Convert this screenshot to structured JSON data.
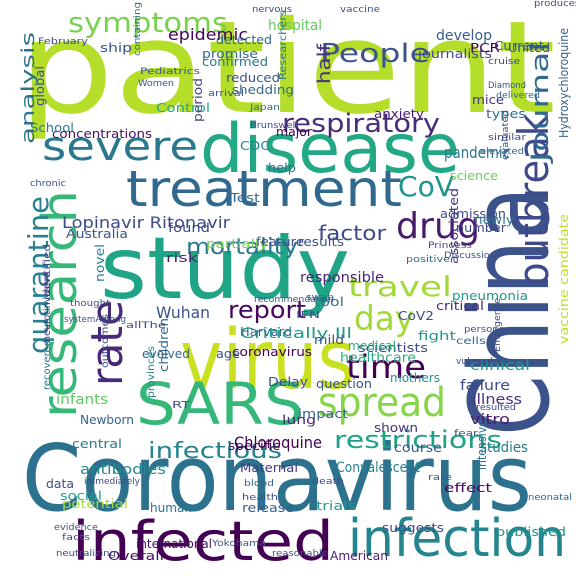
{
  "cloud": {
    "words": [
      {
        "text": "patient",
        "color": "#b5de2b"
      },
      {
        "text": "Coronavirus",
        "color": "#2c728e"
      },
      {
        "text": "disease",
        "color": "#22a884"
      },
      {
        "text": "study",
        "color": "#20a486"
      },
      {
        "text": "China",
        "color": "#3b528b"
      },
      {
        "text": "virus",
        "color": "#c8e020"
      },
      {
        "text": "infected",
        "color": "#440154"
      },
      {
        "text": "infection",
        "color": "#25858e"
      },
      {
        "text": "SARS",
        "color": "#35b779"
      },
      {
        "text": "treatment",
        "color": "#31688e"
      },
      {
        "text": "research",
        "color": "#35b779"
      },
      {
        "text": "outbreak",
        "color": "#3e4a89"
      },
      {
        "text": "severe",
        "color": "#2a788e"
      },
      {
        "text": "spread",
        "color": "#86d549"
      },
      {
        "text": "rate",
        "color": "#482878"
      },
      {
        "text": "symptoms",
        "color": "#7ad151"
      },
      {
        "text": "People",
        "color": "#3b528b"
      },
      {
        "text": "respiratory",
        "color": "#472c7a"
      },
      {
        "text": "Journal",
        "color": "#31688e"
      },
      {
        "text": "quarantine",
        "color": "#27808e"
      },
      {
        "text": "drug",
        "color": "#481a6c"
      },
      {
        "text": "CoV",
        "color": "#1f958b"
      },
      {
        "text": "travel",
        "color": "#a0da39"
      },
      {
        "text": "day",
        "color": "#a0da39"
      },
      {
        "text": "time",
        "color": "#440154"
      },
      {
        "text": "mortality",
        "color": "#2a788e"
      },
      {
        "text": "infectious",
        "color": "#25848e"
      },
      {
        "text": "restrictions",
        "color": "#1fa188"
      },
      {
        "text": "analysis",
        "color": "#2c728e"
      },
      {
        "text": "factor",
        "color": "#3e4a89"
      },
      {
        "text": "half",
        "color": "#46337e"
      },
      {
        "text": "report",
        "color": "#46085c"
      },
      {
        "text": "Wuhan",
        "color": "#3b528b"
      },
      {
        "text": "Lopinavir Ritonavir",
        "color": "#3e4a89"
      },
      {
        "text": "epidemic",
        "color": "#440154"
      },
      {
        "text": "hospital",
        "color": "#65cb5e"
      },
      {
        "text": "develop",
        "color": "#355f8d"
      },
      {
        "text": "pandemic",
        "color": "#2a788e"
      },
      {
        "text": "vaccine candidate",
        "color": "#bddf26"
      },
      {
        "text": "Critically Ill",
        "color": "#1e9c89"
      },
      {
        "text": "Chloroquine",
        "color": "#440154"
      },
      {
        "text": "antibodies",
        "color": "#24878e"
      },
      {
        "text": "Convalescent",
        "color": "#26828e"
      },
      {
        "text": "responsible",
        "color": "#482475"
      },
      {
        "text": "pneumonia",
        "color": "#1f988b"
      },
      {
        "text": "healthcare",
        "color": "#26ad81"
      },
      {
        "text": "scientists",
        "color": "#3f4889"
      },
      {
        "text": "clinical",
        "color": "#1e9b8a"
      },
      {
        "text": "failure",
        "color": "#3e4a89"
      },
      {
        "text": "illness",
        "color": "#46327e"
      },
      {
        "text": "vitro",
        "color": "#481a6c"
      },
      {
        "text": "studies",
        "color": "#297b8e"
      },
      {
        "text": "course",
        "color": "#39568c"
      },
      {
        "text": "intensive",
        "color": "#2a788e"
      },
      {
        "text": "suggests",
        "color": "#3e4a89"
      },
      {
        "text": "published",
        "color": "#1f958b"
      },
      {
        "text": "effect",
        "color": "#46085c"
      },
      {
        "text": "trials",
        "color": "#1f9a8a"
      },
      {
        "text": "release",
        "color": "#355f8d"
      },
      {
        "text": "human",
        "color": "#2c728e"
      },
      {
        "text": "social",
        "color": "#20a386"
      },
      {
        "text": "potential",
        "color": "#a5db36"
      },
      {
        "text": "international",
        "color": "#470d60"
      },
      {
        "text": "American",
        "color": "#481f70"
      },
      {
        "text": "Overall",
        "color": "#46085c"
      },
      {
        "text": "Maternal",
        "color": "#453781"
      },
      {
        "text": "specific",
        "color": "#440154"
      },
      {
        "text": "shown",
        "color": "#46337e"
      },
      {
        "text": "question",
        "color": "#3b528b"
      },
      {
        "text": "lung",
        "color": "#482475"
      },
      {
        "text": "impact",
        "color": "#33638d"
      },
      {
        "text": "Delay",
        "color": "#3e4a89"
      },
      {
        "text": "children",
        "color": "#32648e"
      },
      {
        "text": "evolved",
        "color": "#31688e"
      },
      {
        "text": "coronavirus",
        "color": "#440154"
      },
      {
        "text": "infants",
        "color": "#5ec962"
      },
      {
        "text": "Newborn",
        "color": "#32648e"
      },
      {
        "text": "central",
        "color": "#2a788e"
      },
      {
        "text": "CoV2",
        "color": "#3e4a89"
      },
      {
        "text": "mothers",
        "color": "#21918c"
      },
      {
        "text": "fight",
        "color": "#1f988b"
      },
      {
        "text": "critical",
        "color": "#482878"
      },
      {
        "text": "medical",
        "color": "#25ab82"
      },
      {
        "text": "mild",
        "color": "#3e4a89"
      },
      {
        "text": "tool",
        "color": "#2a788e"
      },
      {
        "text": "Harvard",
        "color": "#31688e"
      },
      {
        "text": "IFN",
        "color": "#3e4a89"
      },
      {
        "text": "results",
        "color": "#3b528b"
      },
      {
        "text": "feature",
        "color": "#3e4a89"
      },
      {
        "text": "partially",
        "color": "#7ad151"
      },
      {
        "text": "risk",
        "color": "#482475"
      },
      {
        "text": "novel",
        "color": "#26828e"
      },
      {
        "text": "associated",
        "color": "#46337e"
      },
      {
        "text": "admission",
        "color": "#3e4a89"
      },
      {
        "text": "newly",
        "color": "#2a788e"
      },
      {
        "text": "science",
        "color": "#6ccd5a"
      },
      {
        "text": "number",
        "color": "#3e4a89"
      },
      {
        "text": "types",
        "color": "#2c728e"
      },
      {
        "text": "mice",
        "color": "#46337e"
      },
      {
        "text": "anxiety",
        "color": "#481a6c"
      },
      {
        "text": "reduced",
        "color": "#3b528b"
      },
      {
        "text": "shedding",
        "color": "#31688e"
      },
      {
        "text": "Control",
        "color": "#22a884"
      },
      {
        "text": "period",
        "color": "#3e4a89"
      },
      {
        "text": "major",
        "color": "#440154"
      },
      {
        "text": "Researchers",
        "color": "#2c728e"
      },
      {
        "text": "CDC",
        "color": "#26828e"
      },
      {
        "text": "Australia",
        "color": "#3b528b"
      },
      {
        "text": "found",
        "color": "#3e4a89"
      },
      {
        "text": "Test",
        "color": "#31688e"
      },
      {
        "text": "concentrations",
        "color": "#470d60"
      },
      {
        "text": "global",
        "color": "#3b528b"
      },
      {
        "text": "School",
        "color": "#2a788e"
      },
      {
        "text": "confirmed",
        "color": "#2a788e"
      },
      {
        "text": "promise",
        "color": "#32648e"
      },
      {
        "text": "detected",
        "color": "#31688e"
      },
      {
        "text": "journalists",
        "color": "#3e4a89"
      },
      {
        "text": "Current",
        "color": "#31688e"
      },
      {
        "text": "PCR",
        "color": "#440154"
      },
      {
        "text": "United",
        "color": "#3e4a89"
      },
      {
        "text": "ship",
        "color": "#3b528b"
      },
      {
        "text": "Hydroxychloroquine",
        "color": "#355f8d"
      },
      {
        "text": "identified",
        "color": "#3e4a89"
      },
      {
        "text": "neurotinvasive",
        "color": "#46337e"
      },
      {
        "text": "recovered",
        "color": "#2a788e"
      },
      {
        "text": "outcomes",
        "color": "#3e4a89"
      },
      {
        "text": "provinces",
        "color": "#26828e"
      },
      {
        "text": "age",
        "color": "#3b528b"
      },
      {
        "text": "help",
        "color": "#31688e"
      },
      {
        "text": "cells",
        "color": "#31688e"
      },
      {
        "text": "data",
        "color": "#3e4a89"
      },
      {
        "text": "vaccine",
        "color": "#3b528b"
      },
      {
        "text": "nervous",
        "color": "#3e4a89"
      },
      {
        "text": "Pediatrics",
        "color": "#3b528b"
      },
      {
        "text": "February",
        "color": "#3e4a89"
      },
      {
        "text": "containing",
        "color": "#31688e"
      },
      {
        "text": "Women",
        "color": "#3b528b"
      },
      {
        "text": "cruise",
        "color": "#3e4a89"
      },
      {
        "text": "Diamond",
        "color": "#3b528b"
      },
      {
        "text": "delivered",
        "color": "#31688e"
      },
      {
        "text": "elevated",
        "color": "#31688e"
      },
      {
        "text": "similar",
        "color": "#3e4a89"
      },
      {
        "text": "evaluated",
        "color": "#3b528b"
      },
      {
        "text": "facts",
        "color": "#3b528b"
      },
      {
        "text": "evidence",
        "color": "#3b528b"
      },
      {
        "text": "neutralizing",
        "color": "#3e4a89"
      },
      {
        "text": "reasonable",
        "color": "#3b528b"
      },
      {
        "text": "neonatal",
        "color": "#31688e"
      },
      {
        "text": "resulted",
        "color": "#3e4a89"
      },
      {
        "text": "vulnerable",
        "color": "#3b528b"
      },
      {
        "text": "immediately",
        "color": "#3e4a89"
      },
      {
        "text": "blood",
        "color": "#31688e"
      },
      {
        "text": "health",
        "color": "#3b528b"
      },
      {
        "text": "death",
        "color": "#3e4a89"
      },
      {
        "text": "rare",
        "color": "#3b528b"
      },
      {
        "text": "fear",
        "color": "#3e4a89"
      },
      {
        "text": "positive",
        "color": "#31688e"
      },
      {
        "text": "persons",
        "color": "#3b528b"
      },
      {
        "text": "Princess",
        "color": "#3e4a89"
      },
      {
        "text": "Discussion",
        "color": "#3b528b"
      },
      {
        "text": "produces",
        "color": "#3e4a89"
      },
      {
        "text": "chronic",
        "color": "#3b528b"
      },
      {
        "text": "thought",
        "color": "#3e4a89"
      },
      {
        "text": "systemAmong",
        "color": "#3b528b"
      },
      {
        "text": "allThe",
        "color": "#3e4a89"
      },
      {
        "text": "recommendation",
        "color": "#3b528b"
      },
      {
        "text": "swab",
        "color": "#31688e"
      },
      {
        "text": "RT",
        "color": "#3e4a89"
      },
      {
        "text": "arrival",
        "color": "#3b528b"
      },
      {
        "text": "Japan",
        "color": "#31688e"
      },
      {
        "text": "Brunswell",
        "color": "#3e4a89"
      },
      {
        "text": "Yokohama",
        "color": "#3b528b"
      },
      {
        "text": "Emergence",
        "color": "#3e4a89"
      }
    ]
  }
}
